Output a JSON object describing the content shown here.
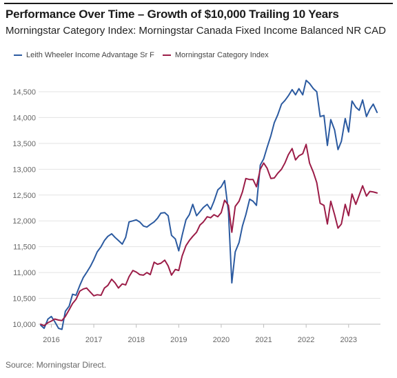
{
  "header": {
    "title": "Performance Over Time – Growth of $10,000 Trailing 10 Years",
    "subtitle": "Morningstar Category Index: Morningstar Canada Fixed Income Balanced NR CAD"
  },
  "footer": {
    "source": "Source: Morningstar Direct."
  },
  "colors": {
    "fund": "#2b5aa0",
    "category": "#9b1c47",
    "grid": "#e3e3e3",
    "axis_text": "#666666"
  },
  "chart_data": {
    "type": "line",
    "title": "Performance Over Time – Growth of $10,000 Trailing 10 Years",
    "subtitle": "Morningstar Category Index: Morningstar Canada Fixed Income Balanced NR CAD",
    "xlabel": "",
    "ylabel": "",
    "xlim": [
      2015.7,
      2023.75
    ],
    "ylim": [
      10000,
      14700
    ],
    "grid": true,
    "legend_position": "top-left",
    "x_ticks": [
      2016,
      2017,
      2018,
      2019,
      2020,
      2021,
      2022,
      2023
    ],
    "x_tick_labels": [
      "2016",
      "2017",
      "2018",
      "2019",
      "2020",
      "2021",
      "2022",
      "2023"
    ],
    "y_ticks": [
      10000,
      10500,
      11000,
      11500,
      12000,
      12500,
      13000,
      13500,
      14000,
      14500
    ],
    "y_tick_labels": [
      "10,000",
      "10,500",
      "11,000",
      "11,500",
      "12,000",
      "12,500",
      "13,000",
      "13,500",
      "14,000",
      "14,500"
    ],
    "series": [
      {
        "name": "Leith Wheeler Income Advantage Sr F",
        "color": "#2b5aa0",
        "points": [
          [
            2015.75,
            9980
          ],
          [
            2015.83,
            9920
          ],
          [
            2015.92,
            10100
          ],
          [
            2016.0,
            10150
          ],
          [
            2016.08,
            10050
          ],
          [
            2016.17,
            9920
          ],
          [
            2016.25,
            9900
          ],
          [
            2016.33,
            10250
          ],
          [
            2016.42,
            10350
          ],
          [
            2016.5,
            10580
          ],
          [
            2016.58,
            10560
          ],
          [
            2016.67,
            10750
          ],
          [
            2016.75,
            10900
          ],
          [
            2016.83,
            11000
          ],
          [
            2016.92,
            11120
          ],
          [
            2017.0,
            11250
          ],
          [
            2017.08,
            11400
          ],
          [
            2017.17,
            11500
          ],
          [
            2017.25,
            11620
          ],
          [
            2017.33,
            11700
          ],
          [
            2017.42,
            11750
          ],
          [
            2017.5,
            11680
          ],
          [
            2017.58,
            11620
          ],
          [
            2017.67,
            11550
          ],
          [
            2017.75,
            11680
          ],
          [
            2017.83,
            11980
          ],
          [
            2017.92,
            12000
          ],
          [
            2018.0,
            12020
          ],
          [
            2018.08,
            11980
          ],
          [
            2018.17,
            11900
          ],
          [
            2018.25,
            11880
          ],
          [
            2018.33,
            11930
          ],
          [
            2018.42,
            11980
          ],
          [
            2018.5,
            12050
          ],
          [
            2018.58,
            12150
          ],
          [
            2018.67,
            12160
          ],
          [
            2018.75,
            12100
          ],
          [
            2018.83,
            11720
          ],
          [
            2018.92,
            11650
          ],
          [
            2019.0,
            11420
          ],
          [
            2019.08,
            11720
          ],
          [
            2019.17,
            12020
          ],
          [
            2019.25,
            12120
          ],
          [
            2019.33,
            12320
          ],
          [
            2019.42,
            12100
          ],
          [
            2019.5,
            12180
          ],
          [
            2019.58,
            12260
          ],
          [
            2019.67,
            12320
          ],
          [
            2019.75,
            12220
          ],
          [
            2019.83,
            12380
          ],
          [
            2019.92,
            12600
          ],
          [
            2020.0,
            12660
          ],
          [
            2020.08,
            12780
          ],
          [
            2020.17,
            12180
          ],
          [
            2020.25,
            10800
          ],
          [
            2020.33,
            11400
          ],
          [
            2020.42,
            11580
          ],
          [
            2020.5,
            11900
          ],
          [
            2020.58,
            12120
          ],
          [
            2020.67,
            12420
          ],
          [
            2020.75,
            12380
          ],
          [
            2020.83,
            12300
          ],
          [
            2020.92,
            13080
          ],
          [
            2021.0,
            13200
          ],
          [
            2021.08,
            13420
          ],
          [
            2021.17,
            13650
          ],
          [
            2021.25,
            13900
          ],
          [
            2021.33,
            14050
          ],
          [
            2021.42,
            14260
          ],
          [
            2021.5,
            14330
          ],
          [
            2021.58,
            14420
          ],
          [
            2021.67,
            14540
          ],
          [
            2021.75,
            14440
          ],
          [
            2021.83,
            14560
          ],
          [
            2021.92,
            14440
          ],
          [
            2022.0,
            14720
          ],
          [
            2022.08,
            14660
          ],
          [
            2022.17,
            14560
          ],
          [
            2022.25,
            14500
          ],
          [
            2022.33,
            14020
          ],
          [
            2022.42,
            14040
          ],
          [
            2022.5,
            13460
          ],
          [
            2022.58,
            13960
          ],
          [
            2022.67,
            13760
          ],
          [
            2022.75,
            13380
          ],
          [
            2022.83,
            13540
          ],
          [
            2022.92,
            13980
          ],
          [
            2023.0,
            13720
          ],
          [
            2023.08,
            14320
          ],
          [
            2023.17,
            14200
          ],
          [
            2023.25,
            14140
          ],
          [
            2023.33,
            14340
          ],
          [
            2023.42,
            14020
          ],
          [
            2023.5,
            14160
          ],
          [
            2023.58,
            14260
          ],
          [
            2023.67,
            14100
          ]
        ]
      },
      {
        "name": "Morningstar Category Index",
        "color": "#9b1c47",
        "points": [
          [
            2015.75,
            10000
          ],
          [
            2015.83,
            9970
          ],
          [
            2015.92,
            10030
          ],
          [
            2016.0,
            10060
          ],
          [
            2016.08,
            10100
          ],
          [
            2016.17,
            10080
          ],
          [
            2016.25,
            10070
          ],
          [
            2016.33,
            10150
          ],
          [
            2016.42,
            10280
          ],
          [
            2016.5,
            10400
          ],
          [
            2016.58,
            10480
          ],
          [
            2016.67,
            10640
          ],
          [
            2016.75,
            10680
          ],
          [
            2016.83,
            10700
          ],
          [
            2016.92,
            10620
          ],
          [
            2017.0,
            10550
          ],
          [
            2017.08,
            10570
          ],
          [
            2017.17,
            10560
          ],
          [
            2017.25,
            10700
          ],
          [
            2017.33,
            10750
          ],
          [
            2017.42,
            10870
          ],
          [
            2017.5,
            10800
          ],
          [
            2017.58,
            10700
          ],
          [
            2017.67,
            10780
          ],
          [
            2017.75,
            10760
          ],
          [
            2017.83,
            10920
          ],
          [
            2017.92,
            11040
          ],
          [
            2018.0,
            11010
          ],
          [
            2018.08,
            10960
          ],
          [
            2018.17,
            10950
          ],
          [
            2018.25,
            11000
          ],
          [
            2018.33,
            10960
          ],
          [
            2018.42,
            11200
          ],
          [
            2018.5,
            11160
          ],
          [
            2018.58,
            11180
          ],
          [
            2018.67,
            11240
          ],
          [
            2018.75,
            11130
          ],
          [
            2018.83,
            10950
          ],
          [
            2018.92,
            11060
          ],
          [
            2019.0,
            11040
          ],
          [
            2019.08,
            11320
          ],
          [
            2019.17,
            11520
          ],
          [
            2019.25,
            11620
          ],
          [
            2019.33,
            11700
          ],
          [
            2019.42,
            11780
          ],
          [
            2019.5,
            11920
          ],
          [
            2019.58,
            11980
          ],
          [
            2019.67,
            12080
          ],
          [
            2019.75,
            12060
          ],
          [
            2019.83,
            12120
          ],
          [
            2019.92,
            12080
          ],
          [
            2020.0,
            12160
          ],
          [
            2020.08,
            12400
          ],
          [
            2020.17,
            12300
          ],
          [
            2020.25,
            11780
          ],
          [
            2020.33,
            12280
          ],
          [
            2020.42,
            12380
          ],
          [
            2020.5,
            12560
          ],
          [
            2020.58,
            12820
          ],
          [
            2020.67,
            12800
          ],
          [
            2020.75,
            12800
          ],
          [
            2020.83,
            12660
          ],
          [
            2020.92,
            13000
          ],
          [
            2021.0,
            13120
          ],
          [
            2021.08,
            13020
          ],
          [
            2021.17,
            12820
          ],
          [
            2021.25,
            12830
          ],
          [
            2021.33,
            12920
          ],
          [
            2021.42,
            13000
          ],
          [
            2021.5,
            13120
          ],
          [
            2021.58,
            13280
          ],
          [
            2021.67,
            13400
          ],
          [
            2021.75,
            13180
          ],
          [
            2021.83,
            13260
          ],
          [
            2021.92,
            13300
          ],
          [
            2022.0,
            13480
          ],
          [
            2022.08,
            13120
          ],
          [
            2022.17,
            12940
          ],
          [
            2022.25,
            12740
          ],
          [
            2022.33,
            12340
          ],
          [
            2022.42,
            12300
          ],
          [
            2022.5,
            11940
          ],
          [
            2022.58,
            12380
          ],
          [
            2022.67,
            12120
          ],
          [
            2022.75,
            11860
          ],
          [
            2022.83,
            11940
          ],
          [
            2022.92,
            12320
          ],
          [
            2023.0,
            12100
          ],
          [
            2023.08,
            12520
          ],
          [
            2023.17,
            12320
          ],
          [
            2023.25,
            12500
          ],
          [
            2023.33,
            12680
          ],
          [
            2023.42,
            12480
          ],
          [
            2023.5,
            12570
          ],
          [
            2023.58,
            12560
          ],
          [
            2023.67,
            12540
          ]
        ]
      }
    ]
  }
}
